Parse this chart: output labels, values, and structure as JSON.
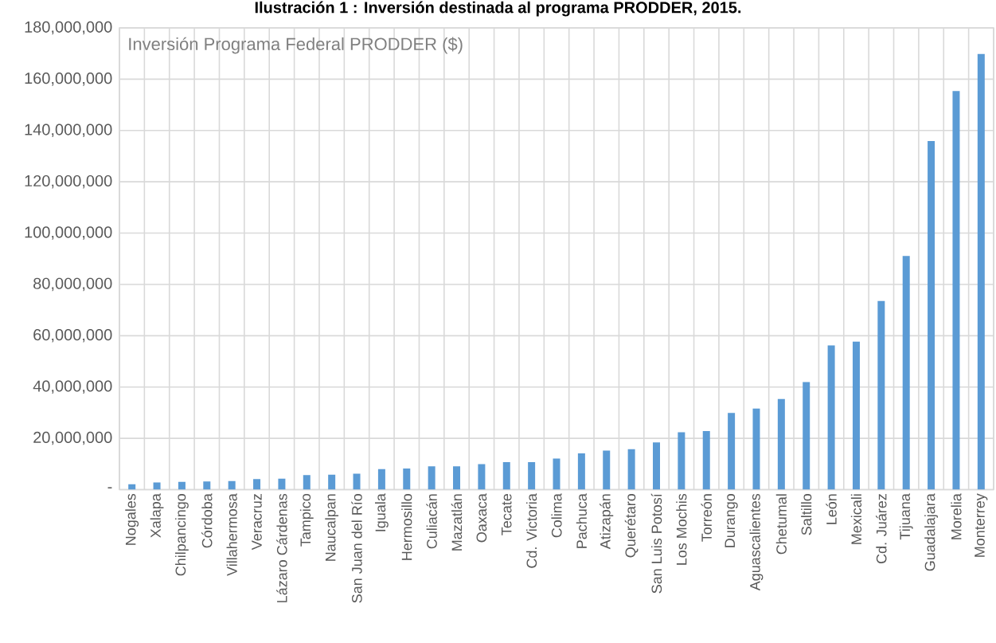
{
  "chart_data": {
    "type": "bar",
    "title": "Ilustración 1 : Inversión destinada al programa PRODDER, 2015.",
    "subtitle": "Inversión Programa Federal PRODDER ($)",
    "categories": [
      "Nogales",
      "Xalapa",
      "Chilpancingo",
      "Córdoba",
      "Villahermosa",
      "Veracruz",
      "Lázaro Cárdenas",
      "Tampico",
      "Naucalpan",
      "San Juan del Río",
      "Iguala",
      "Hermosillo",
      "Culiacán",
      "Mazatlán",
      "Oaxaca",
      "Tecate",
      "Cd. Victoria",
      "Colima",
      "Pachuca",
      "Atizapán",
      "Querétaro",
      "San Luis Potosí",
      "Los Mochis",
      "Torreón",
      "Durango",
      "Aguascalientes",
      "Chetumal",
      "Saltillo",
      "León",
      "Mexicali",
      "Cd. Juárez",
      "Tijuana",
      "Guadalajara",
      "Morelia",
      "Monterrey"
    ],
    "values": [
      2100000,
      2800000,
      3000000,
      3200000,
      3300000,
      4100000,
      4300000,
      5700000,
      5800000,
      6200000,
      8000000,
      8200000,
      9100000,
      9100000,
      9900000,
      10700000,
      10700000,
      12100000,
      14100000,
      15200000,
      15800000,
      18400000,
      22400000,
      22800000,
      29900000,
      31600000,
      35300000,
      41900000,
      56200000,
      57700000,
      73500000,
      91100000,
      135900000,
      155400000,
      169800000
    ],
    "color": "#5b9bd5",
    "ylim": [
      0,
      180000000
    ],
    "yticks": [
      {
        "value": 0,
        "label": "-"
      },
      {
        "value": 20000000,
        "label": "20,000,000"
      },
      {
        "value": 40000000,
        "label": "40,000,000"
      },
      {
        "value": 60000000,
        "label": "60,000,000"
      },
      {
        "value": 80000000,
        "label": "80,000,000"
      },
      {
        "value": 100000000,
        "label": "100,000,000"
      },
      {
        "value": 120000000,
        "label": "120,000,000"
      },
      {
        "value": 140000000,
        "label": "140,000,000"
      },
      {
        "value": 160000000,
        "label": "160,000,000"
      },
      {
        "value": 180000000,
        "label": "180,000,000"
      }
    ],
    "grid": true
  }
}
